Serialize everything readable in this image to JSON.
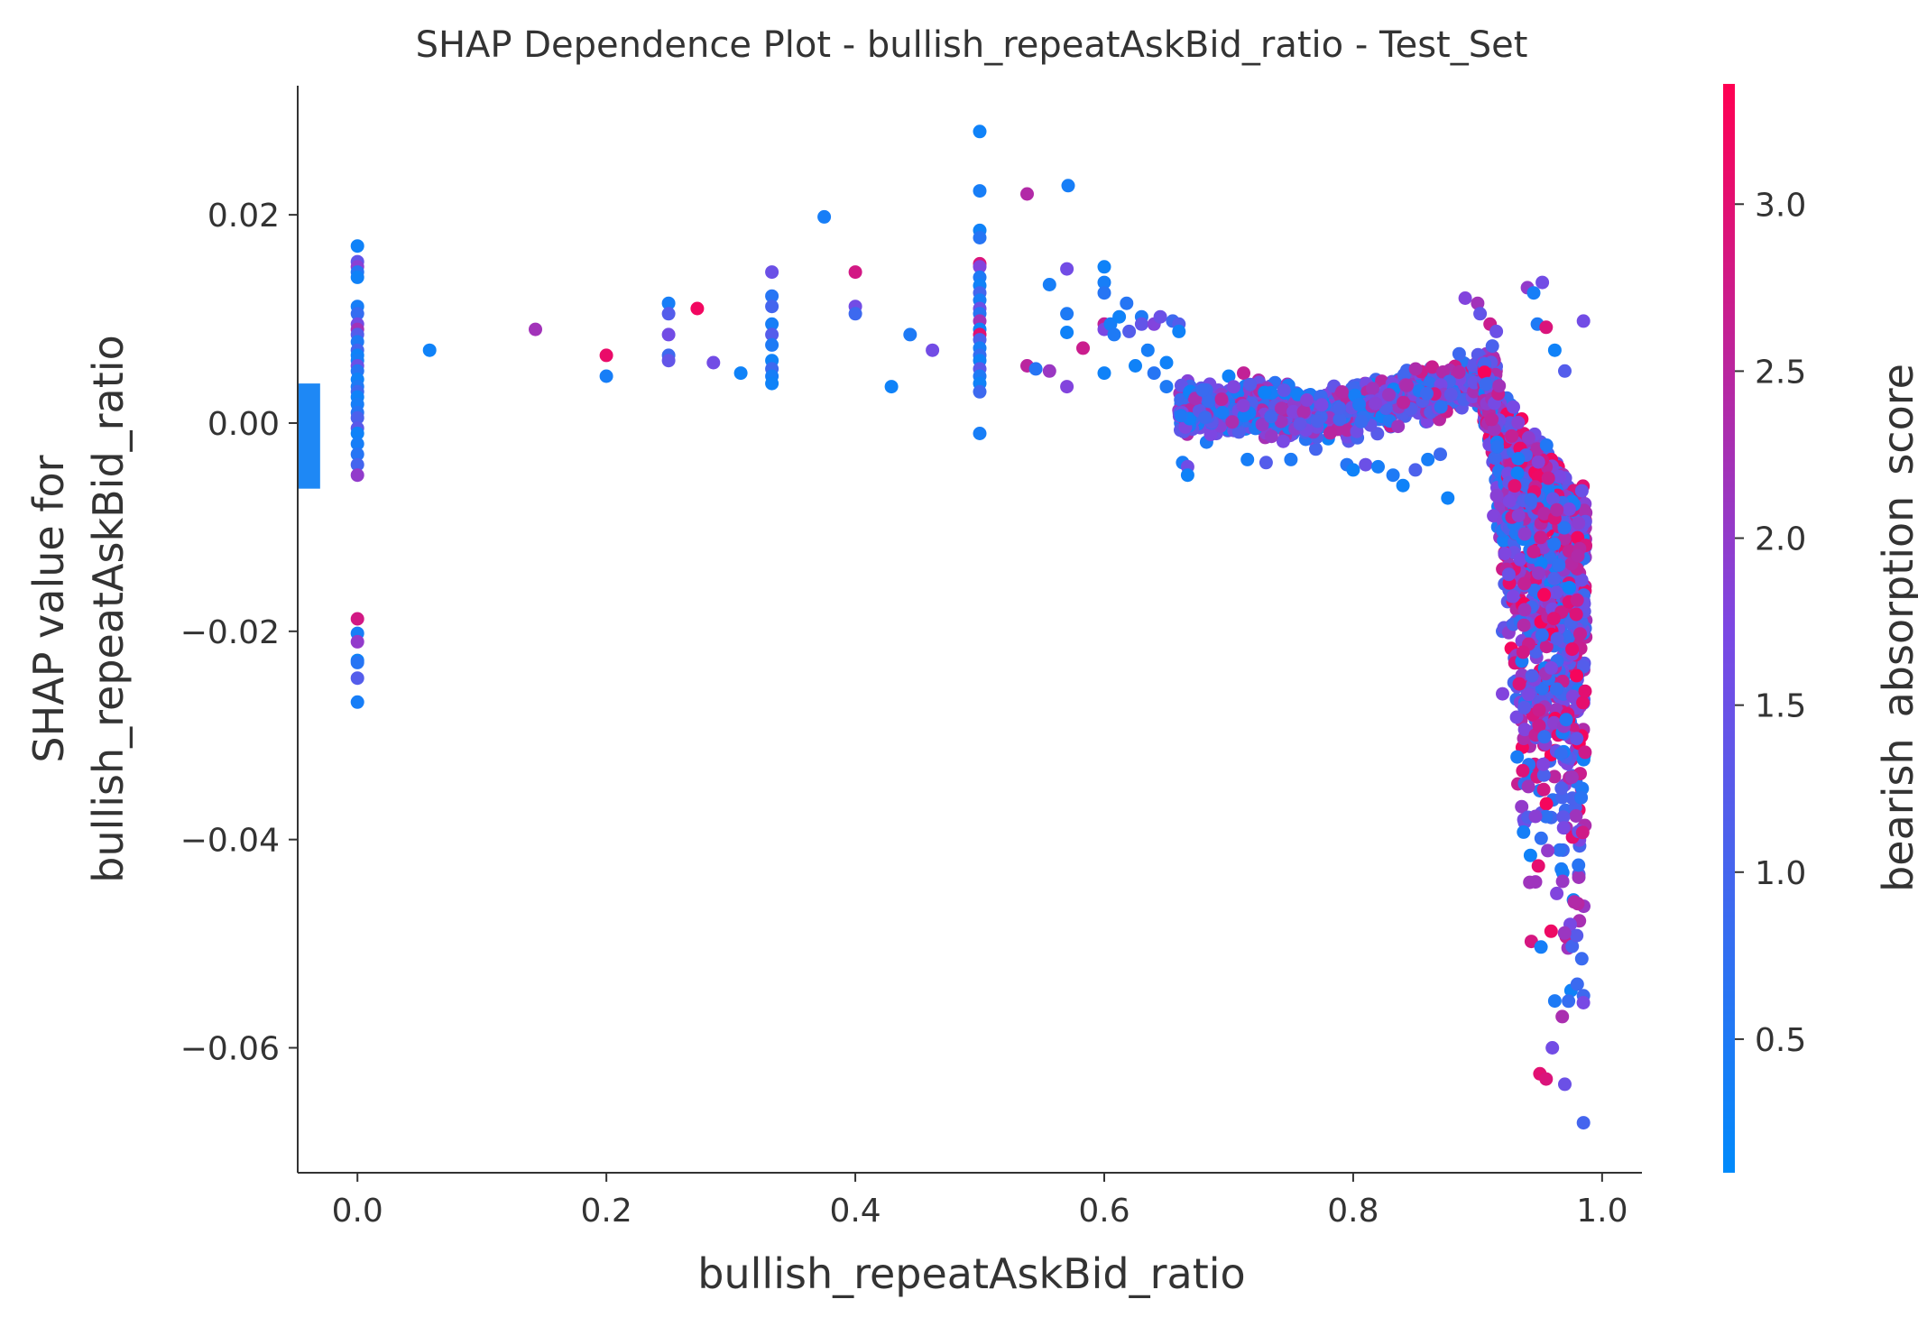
{
  "chart_data": {
    "type": "scatter",
    "title": "SHAP Dependence Plot - bullish_repeatAskBid_ratio - Test_Set",
    "xlabel": "bullish_repeatAskBid_ratio",
    "ylabel_line1": "SHAP value for",
    "ylabel_line2": "bullish_repeatAskBid_ratio",
    "xlim": [
      -0.048,
      1.032
    ],
    "ylim": [
      -0.072,
      0.0324
    ],
    "xticks": [
      0.0,
      0.2,
      0.4,
      0.6,
      0.8,
      1.0
    ],
    "xtick_labels": [
      "0.0",
      "0.2",
      "0.4",
      "0.6",
      "0.8",
      "1.0"
    ],
    "yticks": [
      0.02,
      0.0,
      -0.02,
      -0.04,
      -0.06
    ],
    "ytick_labels": [
      "0.02",
      "0.00",
      "−0.02",
      "−0.04",
      "−0.06"
    ],
    "colorbar": {
      "label": "bearish_absorption_score",
      "range": [
        0.1,
        3.36
      ],
      "ticks": [
        3.0,
        2.5,
        2.0,
        1.5,
        1.0,
        0.5
      ],
      "tick_labels": [
        "3.0",
        "2.5",
        "2.0",
        "1.5",
        "1.0",
        "0.5"
      ],
      "colors": [
        "#008afb",
        "#7c47e3",
        "#ff0052"
      ]
    },
    "nan_band": {
      "x_range": [
        -0.048,
        -0.03
      ],
      "y_range": [
        -0.0063,
        0.0038
      ],
      "color": "#1e88f5"
    },
    "points": [
      [
        0.0,
        0.017,
        0.3
      ],
      [
        0.0,
        0.0155,
        1.4
      ],
      [
        0.0,
        0.015,
        1.9
      ],
      [
        0.0,
        0.0145,
        0.6
      ],
      [
        0.0,
        0.014,
        0.3
      ],
      [
        0.0,
        0.0112,
        0.4
      ],
      [
        0.0,
        0.0105,
        0.8
      ],
      [
        0.0,
        0.0095,
        1.6
      ],
      [
        0.0,
        0.009,
        2.2
      ],
      [
        0.0,
        0.0085,
        1.2
      ],
      [
        0.0,
        0.0078,
        0.5
      ],
      [
        0.0,
        0.007,
        1.0
      ],
      [
        0.0,
        0.0065,
        0.3
      ],
      [
        0.0,
        0.006,
        0.4
      ],
      [
        0.0,
        0.0055,
        1.5
      ],
      [
        0.0,
        0.005,
        0.6
      ],
      [
        0.0,
        0.0042,
        0.3
      ],
      [
        0.0,
        0.0035,
        0.5
      ],
      [
        0.0,
        0.003,
        0.9
      ],
      [
        0.0,
        0.0025,
        0.3
      ],
      [
        0.0,
        0.0018,
        0.4
      ],
      [
        0.0,
        0.001,
        0.6
      ],
      [
        0.0,
        0.0005,
        1.1
      ],
      [
        0.0,
        -0.0005,
        1.3
      ],
      [
        0.0,
        -0.001,
        0.3
      ],
      [
        0.0,
        -0.002,
        0.4
      ],
      [
        0.0,
        -0.003,
        0.6
      ],
      [
        0.0,
        -0.004,
        1.0
      ],
      [
        0.0,
        -0.005,
        2.0
      ],
      [
        0.0,
        -0.0188,
        2.8
      ],
      [
        0.0,
        -0.0202,
        0.4
      ],
      [
        0.0,
        -0.021,
        2.0
      ],
      [
        0.0,
        -0.0228,
        0.3
      ],
      [
        0.0,
        -0.023,
        0.6
      ],
      [
        0.0,
        -0.0245,
        1.2
      ],
      [
        0.0,
        -0.0268,
        0.4
      ],
      [
        0.058,
        0.007,
        0.3
      ],
      [
        0.143,
        0.009,
        2.2
      ],
      [
        0.2,
        0.0065,
        3.1
      ],
      [
        0.2,
        0.0045,
        0.4
      ],
      [
        0.25,
        0.0115,
        0.4
      ],
      [
        0.25,
        0.0105,
        1.2
      ],
      [
        0.25,
        0.0085,
        1.6
      ],
      [
        0.25,
        0.0065,
        0.9
      ],
      [
        0.25,
        0.006,
        1.4
      ],
      [
        0.273,
        0.011,
        3.2
      ],
      [
        0.286,
        0.0058,
        1.6
      ],
      [
        0.308,
        0.0048,
        0.3
      ],
      [
        0.333,
        0.0145,
        1.5
      ],
      [
        0.333,
        0.0122,
        0.6
      ],
      [
        0.333,
        0.0112,
        1.0
      ],
      [
        0.333,
        0.0095,
        0.4
      ],
      [
        0.333,
        0.0085,
        1.2
      ],
      [
        0.333,
        0.0075,
        0.5
      ],
      [
        0.333,
        0.006,
        0.3
      ],
      [
        0.333,
        0.0052,
        0.9
      ],
      [
        0.333,
        0.0045,
        0.4
      ],
      [
        0.333,
        0.0038,
        0.3
      ],
      [
        0.375,
        0.0198,
        0.4
      ],
      [
        0.4,
        0.0145,
        2.8
      ],
      [
        0.4,
        0.0112,
        1.6
      ],
      [
        0.4,
        0.0105,
        0.9
      ],
      [
        0.429,
        0.0035,
        0.3
      ],
      [
        0.444,
        0.0085,
        0.5
      ],
      [
        0.462,
        0.007,
        1.6
      ],
      [
        0.5,
        0.028,
        0.3
      ],
      [
        0.5,
        0.0223,
        0.4
      ],
      [
        0.5,
        0.0185,
        0.3
      ],
      [
        0.5,
        0.0178,
        0.6
      ],
      [
        0.5,
        0.0153,
        2.9
      ],
      [
        0.5,
        0.015,
        1.8
      ],
      [
        0.5,
        0.014,
        0.5
      ],
      [
        0.5,
        0.0132,
        0.3
      ],
      [
        0.5,
        0.0125,
        1.0
      ],
      [
        0.5,
        0.0118,
        0.4
      ],
      [
        0.5,
        0.011,
        1.5
      ],
      [
        0.5,
        0.0105,
        0.6
      ],
      [
        0.5,
        0.0098,
        2.2
      ],
      [
        0.5,
        0.009,
        0.3
      ],
      [
        0.5,
        0.0085,
        3.0
      ],
      [
        0.5,
        0.008,
        1.1
      ],
      [
        0.5,
        0.0072,
        0.4
      ],
      [
        0.5,
        0.0065,
        0.8
      ],
      [
        0.5,
        0.006,
        0.3
      ],
      [
        0.5,
        0.0052,
        1.3
      ],
      [
        0.5,
        0.0045,
        0.5
      ],
      [
        0.5,
        0.0038,
        0.3
      ],
      [
        0.5,
        0.003,
        0.9
      ],
      [
        0.5,
        -0.001,
        0.4
      ],
      [
        0.538,
        0.022,
        2.4
      ],
      [
        0.538,
        0.0055,
        2.5
      ],
      [
        0.545,
        0.0052,
        0.6
      ],
      [
        0.556,
        0.0133,
        0.4
      ],
      [
        0.556,
        0.005,
        2.1
      ],
      [
        0.571,
        0.0228,
        0.4
      ],
      [
        0.57,
        0.0148,
        1.6
      ],
      [
        0.57,
        0.0105,
        0.5
      ],
      [
        0.57,
        0.0087,
        0.3
      ],
      [
        0.57,
        0.0035,
        1.8
      ],
      [
        0.583,
        0.0072,
        2.7
      ],
      [
        0.6,
        0.015,
        0.3
      ],
      [
        0.6,
        0.0135,
        0.4
      ],
      [
        0.6,
        0.0125,
        0.6
      ],
      [
        0.6,
        0.0095,
        2.6
      ],
      [
        0.6,
        0.009,
        1.7
      ],
      [
        0.6,
        0.0048,
        0.3
      ],
      [
        0.605,
        0.0095,
        0.4
      ],
      [
        0.608,
        0.0085,
        0.5
      ],
      [
        0.612,
        0.0102,
        0.3
      ],
      [
        0.618,
        0.0115,
        0.6
      ],
      [
        0.62,
        0.0088,
        1.2
      ],
      [
        0.625,
        0.0055,
        0.3
      ],
      [
        0.63,
        0.0102,
        0.5
      ],
      [
        0.63,
        0.0095,
        1.4
      ],
      [
        0.635,
        0.007,
        0.4
      ],
      [
        0.64,
        0.0095,
        1.8
      ],
      [
        0.64,
        0.0048,
        0.6
      ],
      [
        0.645,
        0.0102,
        1.5
      ],
      [
        0.65,
        0.0058,
        0.3
      ],
      [
        0.65,
        0.0035,
        0.5
      ],
      [
        0.655,
        0.0098,
        0.9
      ],
      [
        0.66,
        0.0095,
        1.2
      ],
      [
        0.66,
        0.0088,
        0.3
      ],
      [
        0.663,
        -0.0038,
        0.4
      ],
      [
        0.667,
        -0.0042,
        1.6
      ],
      [
        0.667,
        -0.005,
        0.3
      ],
      [
        0.67,
        0.003,
        1.0
      ],
      [
        0.7,
        0.0045,
        0.3
      ],
      [
        0.712,
        0.0048,
        2.6
      ],
      [
        0.72,
        0.0035,
        2.0
      ],
      [
        0.715,
        -0.0035,
        0.4
      ],
      [
        0.73,
        -0.0038,
        1.2
      ],
      [
        0.75,
        -0.0035,
        0.5
      ],
      [
        0.77,
        -0.0025,
        1.0
      ],
      [
        0.78,
        -0.0015,
        0.3
      ],
      [
        0.795,
        -0.004,
        0.6
      ],
      [
        0.8,
        -0.0045,
        0.3
      ],
      [
        0.81,
        -0.004,
        1.5
      ],
      [
        0.82,
        -0.0042,
        0.4
      ],
      [
        0.832,
        -0.005,
        0.5
      ],
      [
        0.84,
        -0.006,
        0.3
      ],
      [
        0.85,
        -0.0045,
        1.1
      ],
      [
        0.86,
        -0.0035,
        0.4
      ],
      [
        0.87,
        -0.003,
        0.9
      ],
      [
        0.876,
        -0.0072,
        0.3
      ],
      [
        0.89,
        0.012,
        1.8
      ],
      [
        0.9,
        0.0115,
        2.2
      ],
      [
        0.902,
        0.0105,
        1.4
      ],
      [
        0.91,
        0.0095,
        2.7
      ],
      [
        0.915,
        0.0088,
        1.5
      ],
      [
        0.94,
        0.013,
        2.0
      ],
      [
        0.945,
        0.0125,
        0.4
      ],
      [
        0.952,
        0.0135,
        1.6
      ],
      [
        0.948,
        0.0095,
        0.5
      ],
      [
        0.955,
        0.0092,
        2.9
      ],
      [
        0.962,
        0.007,
        0.3
      ],
      [
        0.97,
        0.005,
        1.2
      ],
      [
        0.985,
        0.0098,
        1.6
      ],
      [
        0.92,
        -0.026,
        1.8
      ],
      [
        0.935,
        -0.023,
        2.7
      ],
      [
        0.92,
        -0.02,
        1.0
      ],
      [
        0.928,
        -0.015,
        2.2
      ],
      [
        0.95,
        -0.0625,
        3.0
      ],
      [
        0.955,
        -0.063,
        2.9
      ],
      [
        0.96,
        -0.06,
        1.6
      ],
      [
        0.97,
        -0.0635,
        1.5
      ],
      [
        0.985,
        -0.0672,
        1.0
      ],
      [
        0.968,
        -0.057,
        2.3
      ],
      [
        0.962,
        -0.0555,
        0.5
      ],
      [
        0.975,
        -0.0545,
        0.3
      ],
      [
        0.985,
        -0.055,
        0.9
      ]
    ]
  }
}
